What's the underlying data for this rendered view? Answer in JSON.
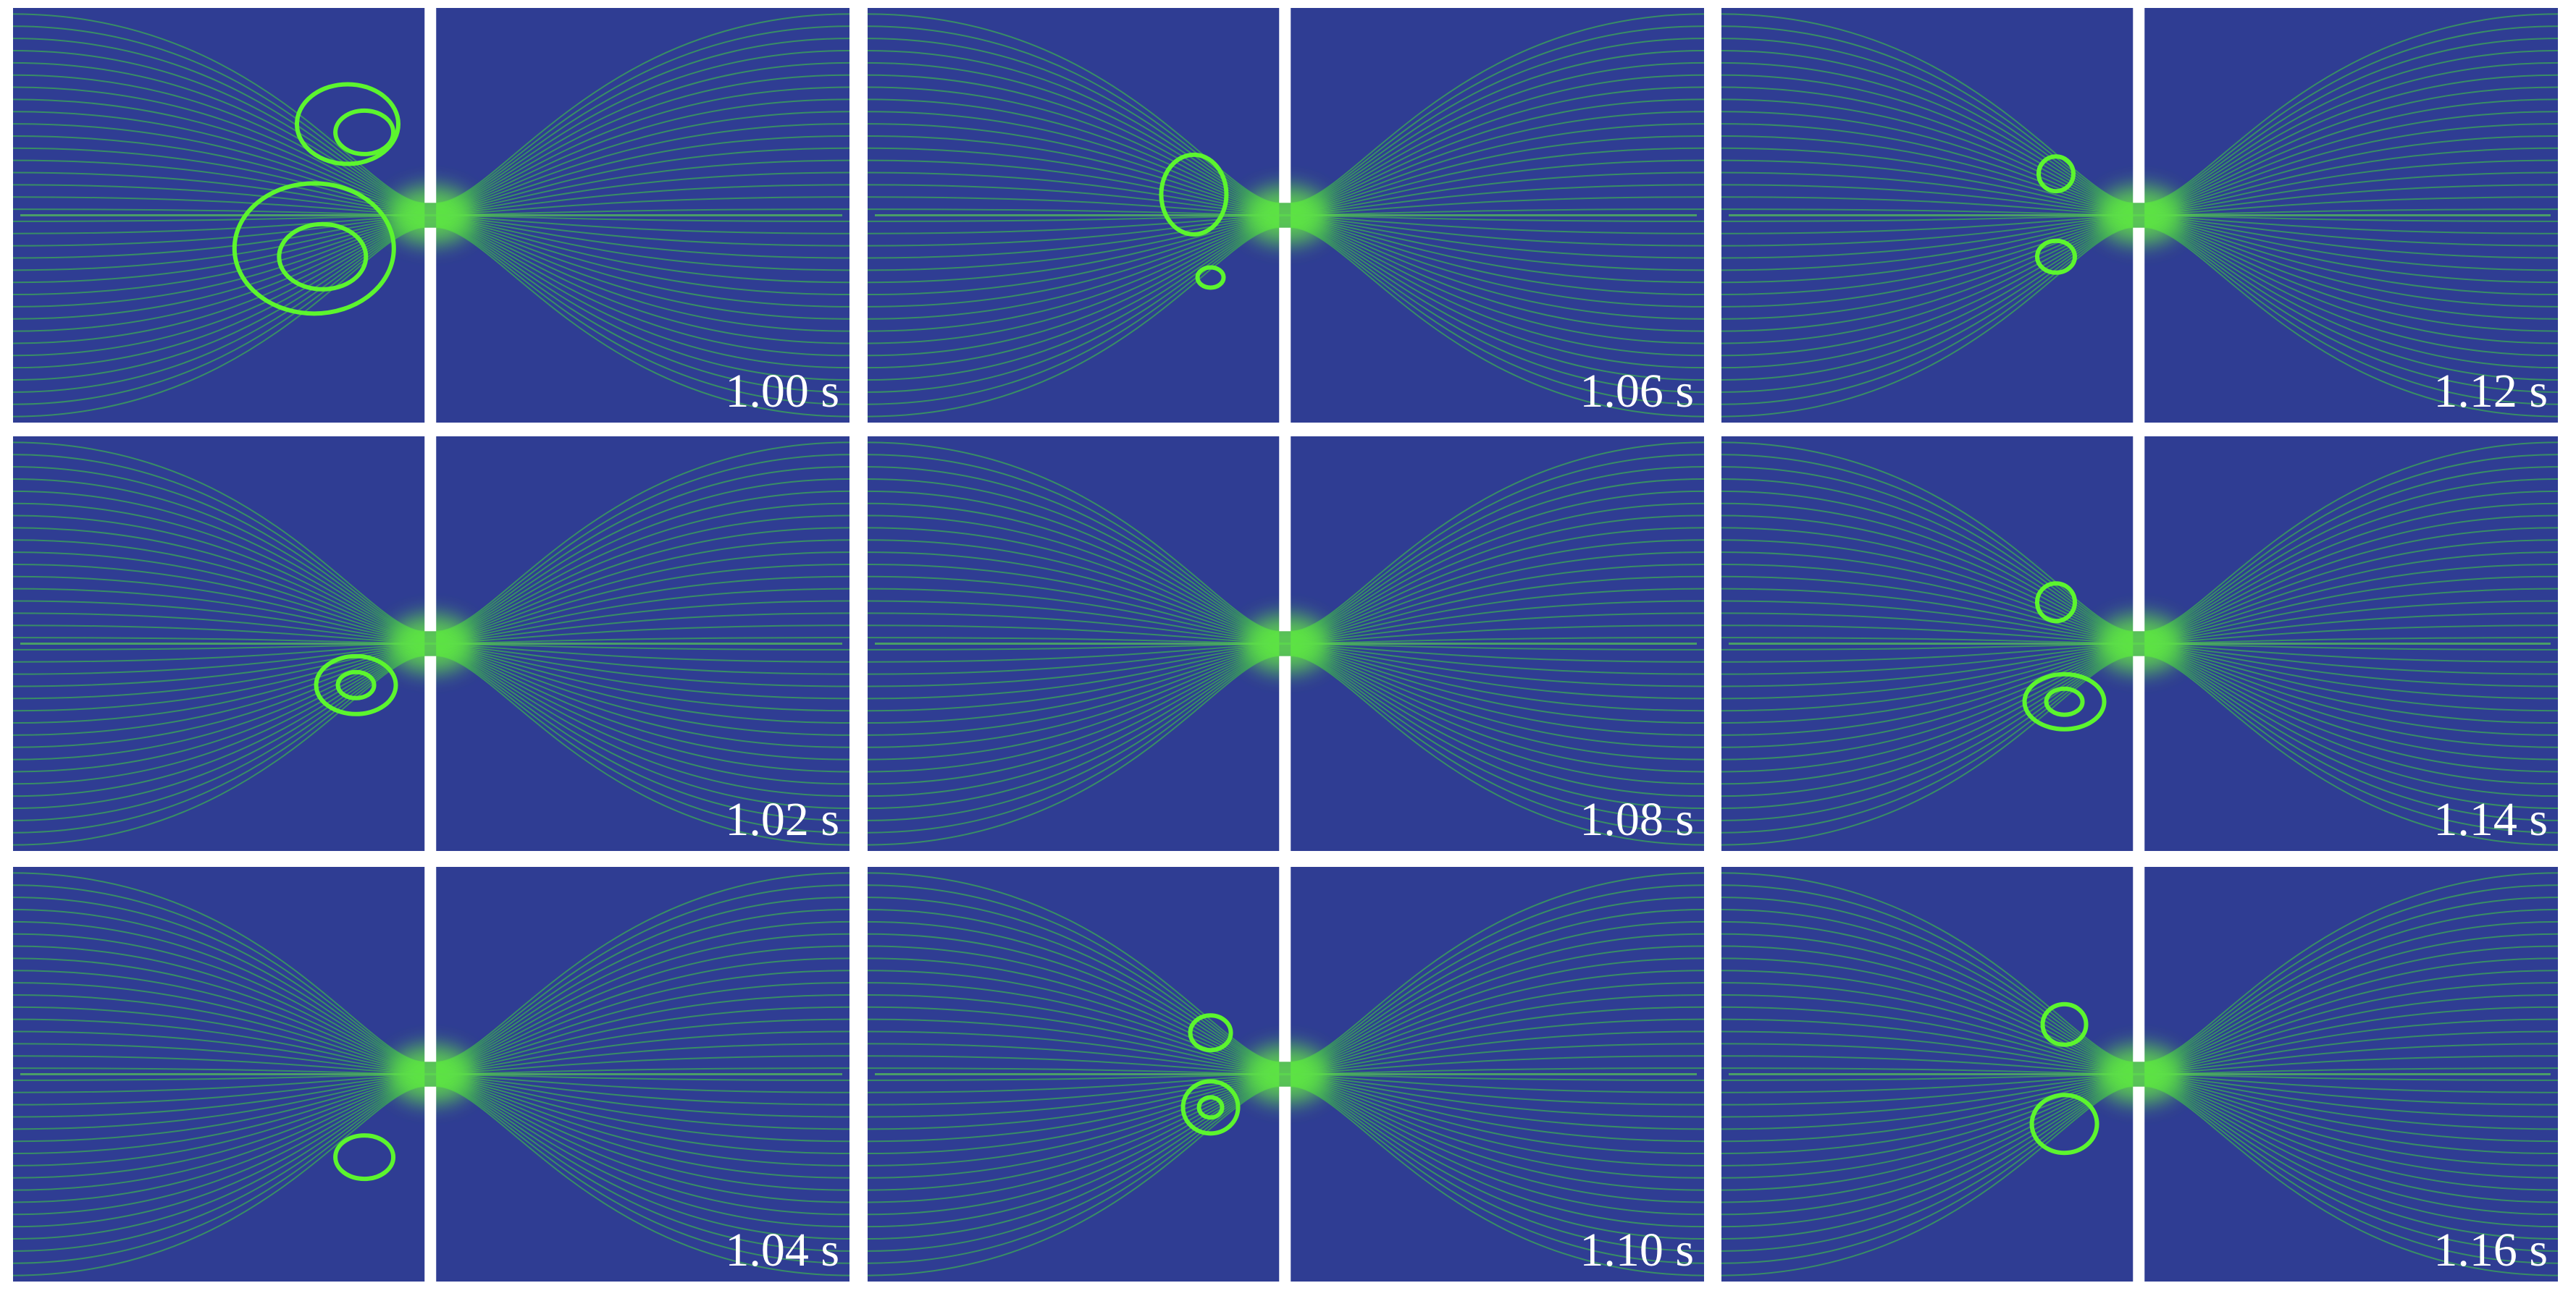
{
  "panels": [
    {
      "label": "1.00 s"
    },
    {
      "label": "1.02 s"
    },
    {
      "label": "1.04 s"
    },
    {
      "label": "1.06 s"
    },
    {
      "label": "1.08 s"
    },
    {
      "label": "1.10 s"
    },
    {
      "label": "1.12 s"
    },
    {
      "label": "1.14 s"
    },
    {
      "label": "1.16 s"
    }
  ]
}
